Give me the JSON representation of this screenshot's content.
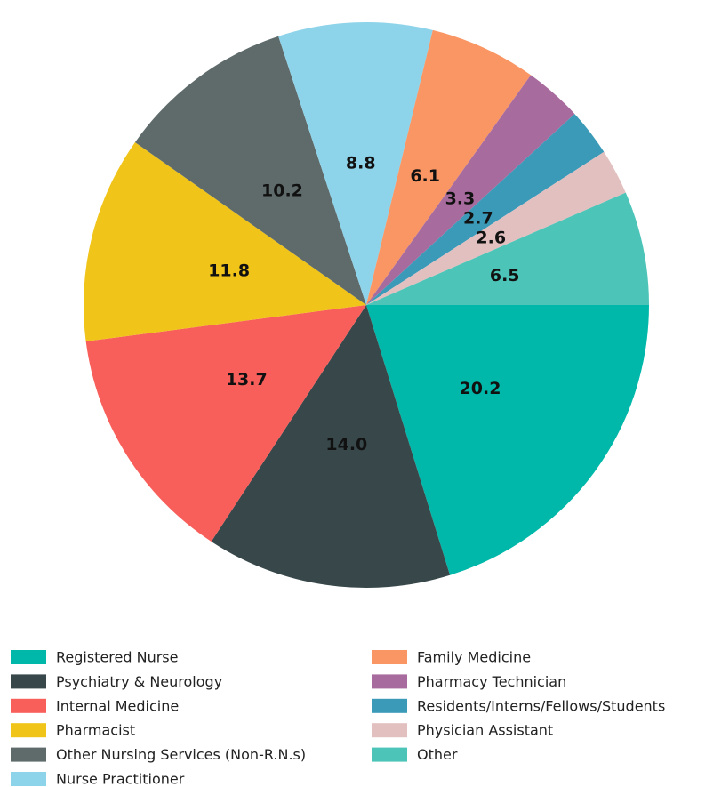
{
  "chart_data": {
    "type": "pie",
    "categories": [
      "Registered Nurse",
      "Psychiatry & Neurology",
      "Internal Medicine",
      "Pharmacist",
      "Other Nursing Services (Non-R.N.s)",
      "Nurse Practitioner",
      "Family Medicine",
      "Pharmacy Technician",
      "Residents/Interns/Fellows/Students",
      "Physician Assistant",
      "Other"
    ],
    "values": [
      20.2,
      14.0,
      13.7,
      11.8,
      10.2,
      8.8,
      6.1,
      3.3,
      2.7,
      2.6,
      6.5
    ],
    "value_labels": [
      "20.2",
      "14.0",
      "13.7",
      "11.8",
      "10.2",
      "8.8",
      "6.1",
      "3.3",
      "2.7",
      "2.6",
      "6.5"
    ],
    "colors": [
      "#00b8a9",
      "#37474a",
      "#f85f5b",
      "#f0c419",
      "#5f6b6b",
      "#8dd3ea",
      "#f99664",
      "#a86b9e",
      "#3a9ab8",
      "#e2c0c0",
      "#4dc4b8"
    ]
  }
}
